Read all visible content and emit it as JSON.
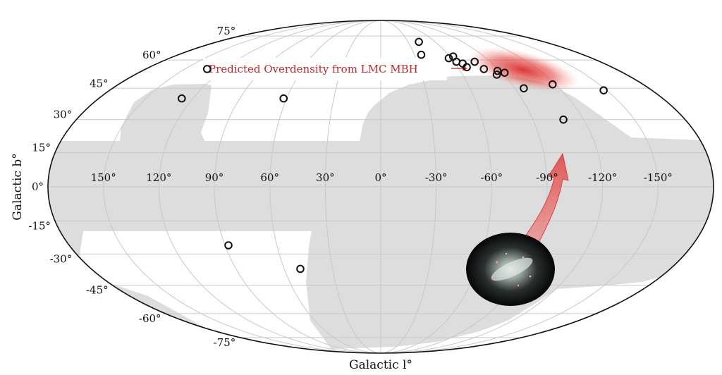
{
  "chart_data": {
    "type": "scatter",
    "projection": "mollweide",
    "xlabel": "Galactic l°",
    "ylabel": "Galactic b°",
    "xlim": [
      180,
      -180
    ],
    "ylim": [
      -90,
      90
    ],
    "grid": true,
    "longitude_ticks": [
      150,
      120,
      90,
      60,
      30,
      0,
      -30,
      -60,
      -90,
      -120,
      -150
    ],
    "latitude_ticks": [
      75,
      60,
      45,
      30,
      15,
      0,
      -15,
      -30,
      -45,
      -60,
      -75
    ],
    "longitude_tick_labels": [
      "150°",
      "120°",
      "90°",
      "60°",
      "30°",
      "0°",
      "-30°",
      "-60°",
      "-90°",
      "-120°",
      "-150°"
    ],
    "latitude_tick_labels": [
      "75°",
      "60°",
      "45°",
      "30°",
      "15°",
      "0°",
      "-15°",
      "-30°",
      "-45°",
      "-60°",
      "-75°"
    ],
    "annotation": "Predicted Overdensity from LMC MBH",
    "overdensity_center": {
      "l": -75,
      "b": 59
    },
    "colors": {
      "footprint": "#dddddd",
      "overdensity": "#d92b2b",
      "arrow": "#e05555",
      "grid": "#cfcfcf",
      "outline": "#111111"
    },
    "points": [
      {
        "l": -42,
        "b": 71
      },
      {
        "l": -36,
        "b": 63
      },
      {
        "l": -58,
        "b": 61
      },
      {
        "l": -63,
        "b": 62
      },
      {
        "l": -62,
        "b": 59
      },
      {
        "l": -66,
        "b": 58
      },
      {
        "l": -67,
        "b": 56
      },
      {
        "l": -77,
        "b": 59
      },
      {
        "l": -79,
        "b": 55
      },
      {
        "l": -85,
        "b": 52
      },
      {
        "l": -88,
        "b": 54
      },
      {
        "l": -92,
        "b": 53
      },
      {
        "l": -96,
        "b": 45
      },
      {
        "l": -118,
        "b": 47
      },
      {
        "l": -148,
        "b": 44
      },
      {
        "l": -108,
        "b": 30
      },
      {
        "l": 127,
        "b": 40
      },
      {
        "l": 133,
        "b": 55
      },
      {
        "l": 62,
        "b": 40
      },
      {
        "l": 88,
        "b": -26
      },
      {
        "l": 50,
        "b": -37
      }
    ]
  }
}
